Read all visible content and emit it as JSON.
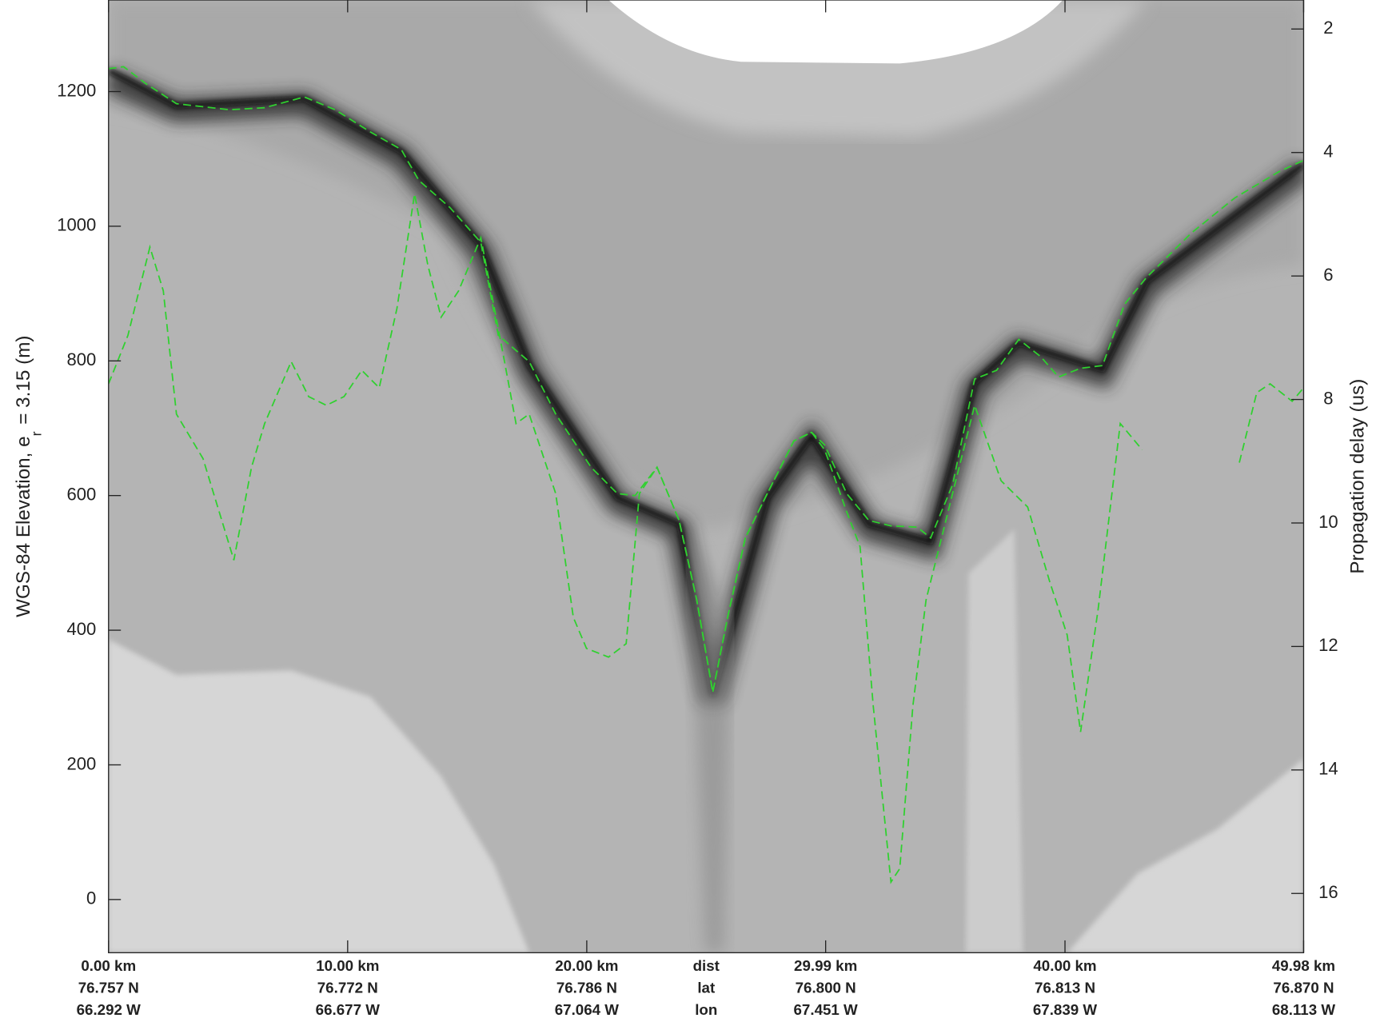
{
  "chart_data": {
    "type": "line",
    "ylabel_main": "WGS-84 Elevation, e",
    "ylabel_sub": "r",
    "ylabel_end": "= 3.15 (m)",
    "y2label": "Propagation delay (us)",
    "xlim": [
      0,
      49.98
    ],
    "ylim": [
      -79,
      1336
    ],
    "y2lim": [
      16.96,
      1.53
    ],
    "yticks": [
      0,
      200,
      400,
      600,
      800,
      1000,
      1200
    ],
    "y2ticks": [
      2,
      4,
      6,
      8,
      10,
      12,
      14,
      16
    ],
    "xticks": [
      {
        "value": 0,
        "label": "0.00 km"
      },
      {
        "value": 10,
        "label": "10.00 km"
      },
      {
        "value": 20,
        "label": "20.00 km"
      },
      {
        "value": 29.99,
        "label": "29.99 km"
      },
      {
        "value": 40,
        "label": "40.00 km"
      },
      {
        "value": 49.98,
        "label": "49.98 km"
      }
    ],
    "lat_labels": [
      "76.757 N",
      "76.772 N",
      "76.786 N",
      "76.800 N",
      "76.813 N",
      "76.870 N"
    ],
    "lon_labels": [
      "66.292 W",
      "66.677 W",
      "67.064 W",
      "67.451 W",
      "67.839 W",
      "68.113 W"
    ],
    "row_labels": [
      "dist",
      "lat",
      "lon"
    ],
    "series": [
      {
        "color": "#2fd12f",
        "x": [
          0,
          0.63,
          1.55,
          2.84,
          5.05,
          6.53,
          8.19,
          9.48,
          10.95,
          12.24,
          12.98,
          14.27,
          15.57,
          16.3,
          17.59,
          18.7,
          20.18,
          21.28,
          22.02,
          22.94,
          23.86,
          24.6,
          25.27,
          25.89,
          26.63,
          27.55,
          28.66,
          29.4,
          29.95,
          30.87,
          31.8,
          32.72,
          33.82,
          34.38,
          35.3,
          36.22,
          37.14,
          38.07,
          38.99,
          39.73,
          40.65,
          41.57,
          42.49,
          43.41,
          45.26,
          47.1,
          48.95,
          49.98
        ],
        "values": [
          1234,
          1237,
          1212,
          1182,
          1173,
          1176,
          1192,
          1173,
          1140,
          1114,
          1068,
          1028,
          976,
          838,
          799,
          721,
          642,
          603,
          600,
          642,
          563,
          445,
          308,
          419,
          537,
          603,
          681,
          694,
          675,
          603,
          563,
          555,
          553,
          537,
          616,
          773,
          786,
          832,
          806,
          776,
          789,
          793,
          884,
          924,
          989,
          1042,
          1081,
          1098
        ]
      },
      {
        "color": "#2fd12f",
        "x": [
          0,
          0.81,
          1.73,
          2.29,
          2.84,
          3.95,
          5.24,
          5.98,
          6.53,
          7.64,
          8.37,
          9.11,
          9.85,
          10.59,
          11.32,
          12.06,
          12.8,
          13.35,
          13.91,
          14.64,
          15.57,
          16.49,
          17.04,
          17.59,
          18.7,
          19.44,
          19.99,
          20.91,
          21.65,
          22.2,
          22.94,
          23.86,
          24.6,
          25.27,
          25.89,
          26.63,
          27.55,
          28.66,
          29.4,
          29.95,
          30.87,
          31.43,
          31.98,
          32.72,
          33.09,
          33.64,
          34.19,
          35.3,
          36.22,
          37.33,
          38.44,
          39.36,
          40.09,
          40.65,
          41.39,
          42.31,
          43.23,
          45.0,
          47.29,
          48.02,
          48.58,
          49.5,
          49.98
        ],
        "values": [
          766,
          838,
          969,
          904,
          721,
          655,
          504,
          642,
          707,
          799,
          747,
          734,
          747,
          786,
          760,
          878,
          1048,
          943,
          865,
          904,
          983,
          812,
          707,
          721,
          603,
          419,
          373,
          360,
          380,
          603,
          642,
          563,
          445,
          308,
          419,
          537,
          603,
          681,
          694,
          668,
          576,
          524,
          288,
          26,
          46,
          288,
          445,
          603,
          734,
          622,
          583,
          472,
          393,
          249,
          432,
          707,
          668,
          null,
          649,
          753,
          766,
          740,
          760
        ]
      }
    ]
  }
}
